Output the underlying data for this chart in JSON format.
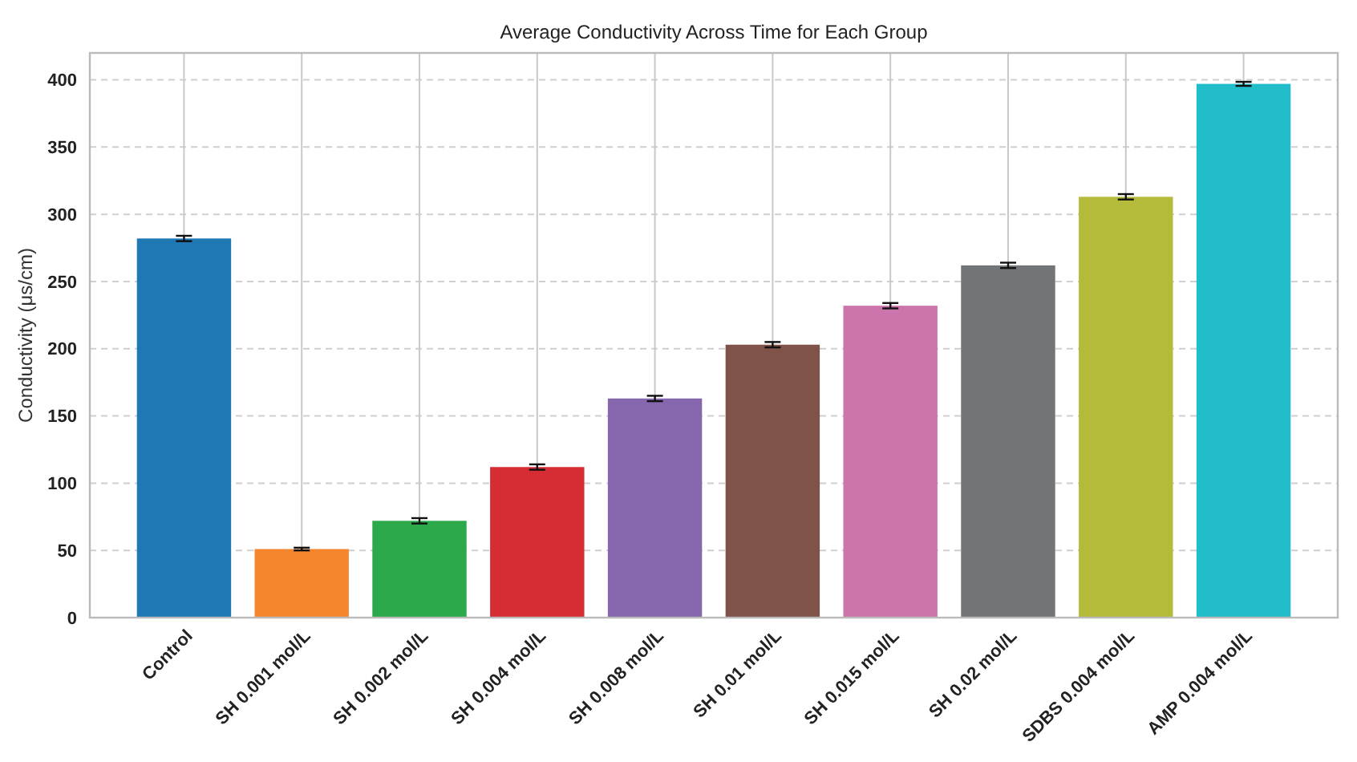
{
  "chart_data": {
    "type": "bar",
    "title": "Average Conductivity Across Time for Each Group",
    "ylabel": "Conductivity (μs/cm)",
    "categories": [
      "Control",
      "SH 0.001 mol/L",
      "SH 0.002 mol/L",
      "SH 0.004 mol/L",
      "SH 0.008 mol/L",
      "SH 0.01 mol/L",
      "SH 0.015 mol/L",
      "SH 0.02 mol/L",
      "SDBS 0.004 mol/L",
      "AMP 0.004 mol/L"
    ],
    "values": [
      282,
      51,
      72,
      112,
      163,
      203,
      232,
      262,
      313,
      397
    ],
    "errors": [
      2,
      1,
      2,
      2,
      2,
      2,
      2,
      2,
      2,
      1.5
    ],
    "colors": [
      "#1f77b4",
      "#f5862e",
      "#2ca94a",
      "#d62d35",
      "#8667ad",
      "#7f5349",
      "#cc75ad",
      "#727577",
      "#b4bb3a",
      "#22bdca"
    ],
    "ylim": [
      0,
      420
    ],
    "yticks": [
      0,
      50,
      100,
      150,
      200,
      250,
      300,
      350,
      400
    ],
    "grid": true
  }
}
